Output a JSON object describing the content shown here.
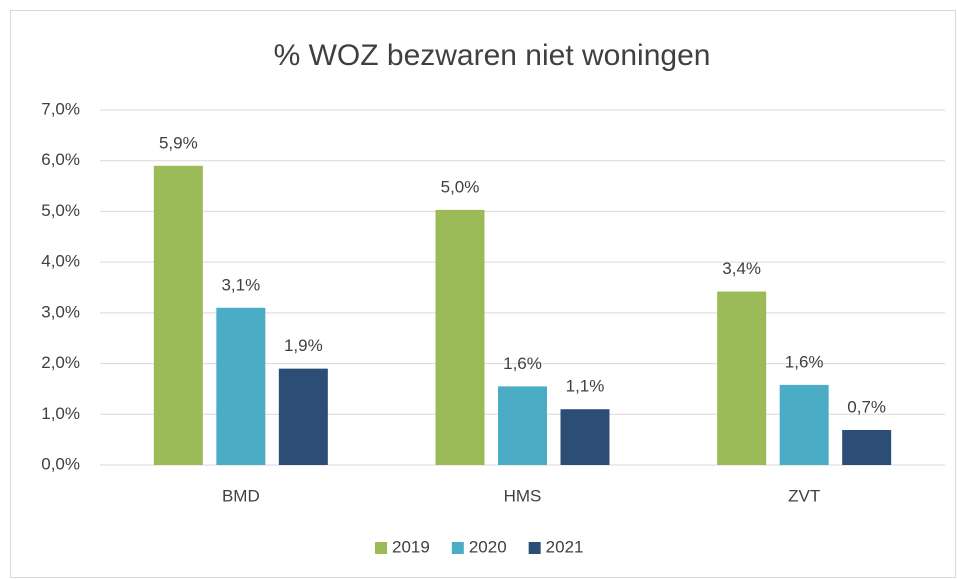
{
  "chart_data": {
    "type": "bar",
    "title": "% WOZ bezwaren niet woningen",
    "categories": [
      "BMD",
      "HMS",
      "ZVT"
    ],
    "series": [
      {
        "name": "2019",
        "color": "#9bbb59",
        "values": [
          5.9,
          5.03,
          3.42
        ],
        "value_labels": [
          "5,9%",
          "5,0%",
          "3,4%"
        ]
      },
      {
        "name": "2020",
        "color": "#4bacc6",
        "values": [
          3.1,
          1.55,
          1.58
        ],
        "value_labels": [
          "3,1%",
          "1,6%",
          "1,6%"
        ]
      },
      {
        "name": "2021",
        "color": "#2c4d75",
        "values": [
          1.9,
          1.1,
          0.69
        ],
        "value_labels": [
          "1,9%",
          "1,1%",
          "0,7%"
        ]
      }
    ],
    "ylim": [
      0,
      7
    ],
    "yticks": [
      {
        "value": 0,
        "label": "0,0%"
      },
      {
        "value": 1,
        "label": "1,0%"
      },
      {
        "value": 2,
        "label": "2,0%"
      },
      {
        "value": 3,
        "label": "3,0%"
      },
      {
        "value": 4,
        "label": "4,0%"
      },
      {
        "value": 5,
        "label": "5,0%"
      },
      {
        "value": 6,
        "label": "6,0%"
      },
      {
        "value": 7,
        "label": "7,0%"
      }
    ],
    "grid": true,
    "legend": "bottom"
  }
}
